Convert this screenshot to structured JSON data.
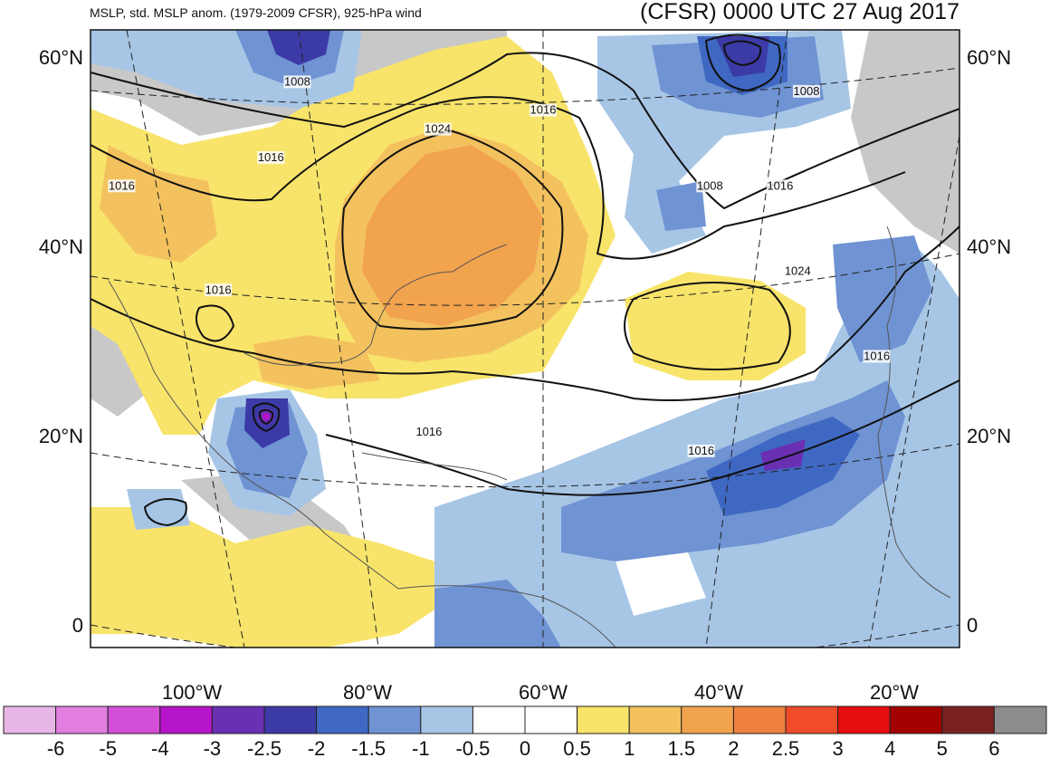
{
  "title": {
    "left": "MSLP, std. MSLP anom. (1979-2009 CFSR), 925-hPa wind",
    "right": "(CFSR) 0000 UTC 27 Aug 2017"
  },
  "lat_labels": [
    {
      "text": "60°N",
      "lat": 60
    },
    {
      "text": "40°N",
      "lat": 40
    },
    {
      "text": "20°N",
      "lat": 20
    },
    {
      "text": "0",
      "lat": 0
    }
  ],
  "lon_labels": [
    {
      "text": "100°W",
      "lon": -100
    },
    {
      "text": "80°W",
      "lon": -80
    },
    {
      "text": "60°W",
      "lon": -60
    },
    {
      "text": "40°W",
      "lon": -40
    },
    {
      "text": "20°W",
      "lon": -20
    }
  ],
  "isobar_labels": [
    {
      "text": "1008",
      "lat": 57,
      "lon": -88
    },
    {
      "text": "1008",
      "lat": 56,
      "lon": -30
    },
    {
      "text": "1016",
      "lat": 54,
      "lon": -60
    },
    {
      "text": "1024",
      "lat": 52,
      "lon": -72
    },
    {
      "text": "1016",
      "lat": 49,
      "lon": -91
    },
    {
      "text": "1016",
      "lat": 46,
      "lon": -108
    },
    {
      "text": "1008",
      "lat": 46,
      "lon": -41
    },
    {
      "text": "1016",
      "lat": 46,
      "lon": -33
    },
    {
      "text": "1024",
      "lat": 37,
      "lon": -31
    },
    {
      "text": "1016",
      "lat": 35,
      "lon": -97
    },
    {
      "text": "1016",
      "lat": 28,
      "lon": -22
    },
    {
      "text": "1016",
      "lat": 20,
      "lon": -73
    },
    {
      "text": "1016",
      "lat": 18,
      "lon": -42
    }
  ],
  "colorbar": {
    "labels": [
      "-6",
      "-5",
      "-4",
      "-3",
      "-2.5",
      "-2",
      "-1.5",
      "-1",
      "-0.5",
      "0",
      "0.5",
      "1",
      "1.5",
      "2",
      "2.5",
      "3",
      "4",
      "5",
      "6"
    ],
    "colors": [
      "#e8b6e6",
      "#e27fe0",
      "#d44fd9",
      "#b514c9",
      "#6a2fb2",
      "#3c3aa6",
      "#3f68c2",
      "#6f93d3",
      "#a7c6e6",
      "#ffffff",
      "#ffffff",
      "#f8e46a",
      "#f3c25e",
      "#f2a34e",
      "#ef8140",
      "#f04b2a",
      "#e60e0e",
      "#a30202",
      "#7a2222",
      "#8c8c8c"
    ]
  },
  "chart_data": {
    "type": "map",
    "projection": "conic",
    "lat_range": [
      0,
      60
    ],
    "lon_range": [
      -115,
      -8
    ],
    "variable": "MSLP, std. MSLP anom. (1979-2009 CFSR), 925-hPa wind",
    "isobar_levels": [
      1008,
      1016,
      1024
    ],
    "anomaly_levels": [
      -6,
      -5,
      -4,
      -3,
      -2.5,
      -2,
      -1.5,
      -1,
      -0.5,
      0,
      0.5,
      1,
      1.5,
      2,
      2.5,
      3,
      4,
      5,
      6
    ],
    "features": [
      {
        "kind": "high",
        "lat": 48,
        "lon": -70,
        "anomaly": 1.5
      },
      {
        "kind": "high",
        "lat": 36,
        "lon": -35,
        "anomaly": 1
      },
      {
        "kind": "low",
        "lat": 24,
        "lon": -92,
        "anomaly": -3
      },
      {
        "kind": "low",
        "lat": 61,
        "lon": -35,
        "anomaly": -2.5
      },
      {
        "kind": "low",
        "lat": 62,
        "lon": -85,
        "anomaly": -2.5
      },
      {
        "kind": "low",
        "lat": 20,
        "lon": -30,
        "anomaly": -2
      }
    ]
  }
}
